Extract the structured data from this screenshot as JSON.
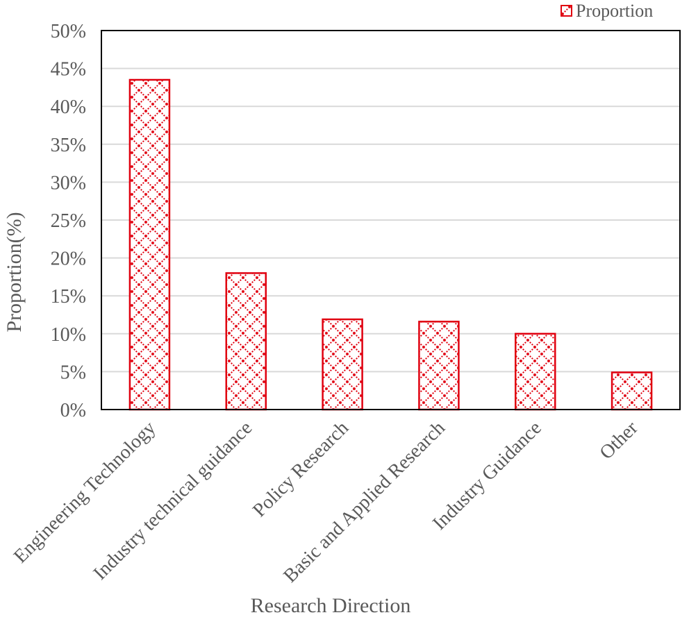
{
  "chart_data": {
    "type": "bar",
    "title": "",
    "categories": [
      "Engineering Technology",
      "Industry technical guidance",
      "Policy Research",
      "Basic and Applied Research",
      "Industry Guidance",
      "Other"
    ],
    "series": [
      {
        "name": "Proportion",
        "values": [
          43.5,
          18.0,
          11.9,
          11.6,
          10.0,
          4.9
        ]
      }
    ],
    "xlabel": "Research Direction",
    "ylabel": "Proportion(%)",
    "ylim": [
      0,
      50
    ],
    "yticks": [
      "0%",
      "5%",
      "10%",
      "15%",
      "20%",
      "25%",
      "30%",
      "35%",
      "40%",
      "45%",
      "50%"
    ],
    "grid": true,
    "legend": "top-right",
    "colors": {
      "bar_stroke": "#e0000f",
      "bar_fill": "#ffffff",
      "grid": "#d9d9d9",
      "frame": "#000000",
      "text": "#595959"
    }
  }
}
